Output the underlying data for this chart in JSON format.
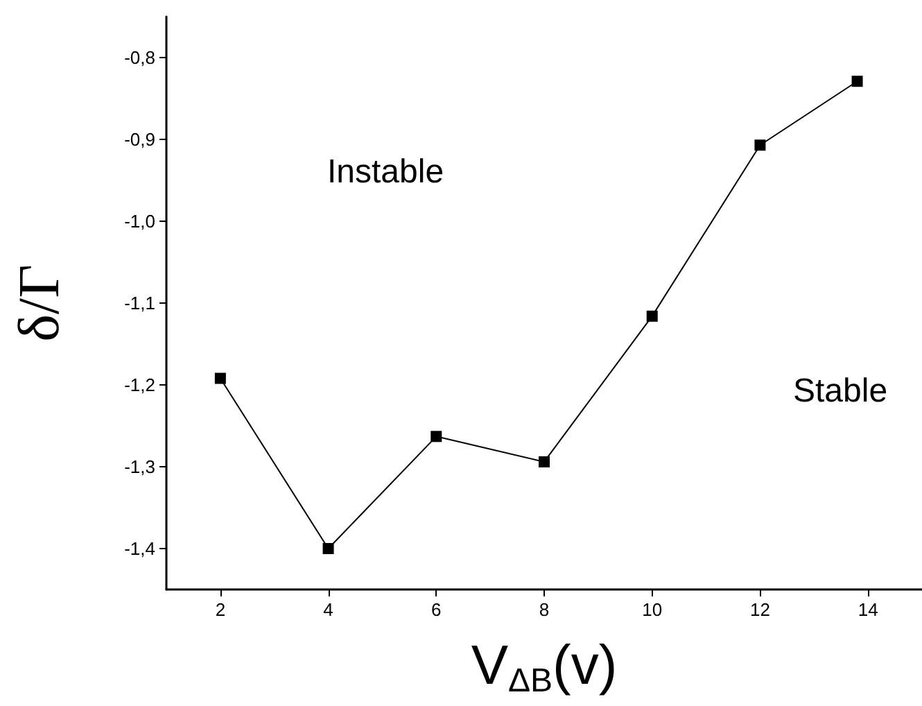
{
  "chart_data": {
    "type": "line",
    "xlabel": "V$_{ΔB}$(v)",
    "ylabel": "δ/Γ",
    "x": [
      2,
      4,
      6,
      8,
      10,
      12,
      13.8
    ],
    "series": [
      {
        "color": "#000000",
        "values": [
          -1.192,
          -1.4,
          -1.263,
          -1.294,
          -1.116,
          -0.907,
          -0.829
        ]
      }
    ],
    "xlim": [
      1,
      15
    ],
    "xticks": [
      2,
      4,
      6,
      8,
      10,
      12,
      14
    ],
    "ylim": [
      -1.45,
      -0.75
    ],
    "yticks": [
      {
        "value": -1.4,
        "label": "-1,4"
      },
      {
        "value": -1.3,
        "label": "-1,3"
      },
      {
        "value": -1.2,
        "label": "-1,2"
      },
      {
        "value": -1.1,
        "label": "-1,1"
      },
      {
        "value": -1.0,
        "label": "-1,0"
      },
      {
        "value": -0.9,
        "label": "-0,9"
      },
      {
        "value": -0.8,
        "label": "-0,8"
      }
    ],
    "annotations": [
      "Instable",
      "Stable"
    ],
    "marker": "square",
    "line_style": "solid",
    "grid": false
  }
}
